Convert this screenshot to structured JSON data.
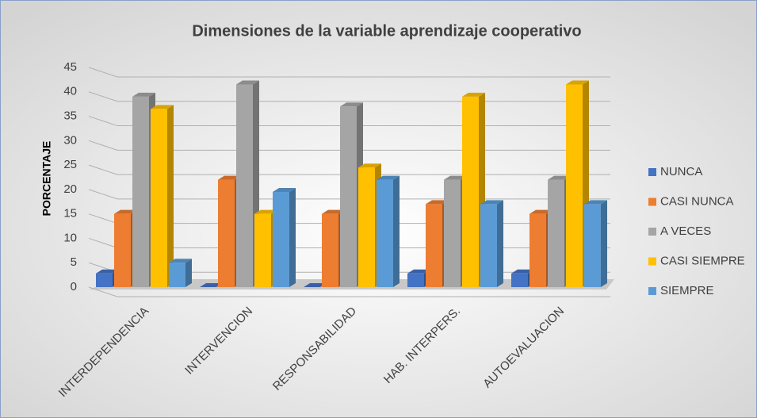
{
  "chart_data": {
    "type": "bar3d",
    "title": "Dimensiones de la variable aprendizaje cooperativo",
    "y_label": "PORCENTAJE",
    "categories": [
      "INTERDEPENDENCIA",
      "INTERVENCION",
      "RESPONSABILIDAD",
      "HAB. INTERPERS.",
      "AUTOEVALUACION"
    ],
    "series": [
      {
        "name": "NUNCA",
        "color": "#4472c4",
        "values": [
          2.8,
          0,
          0,
          2.8,
          2.8
        ]
      },
      {
        "name": "CASI NUNCA",
        "color": "#ed7d31",
        "values": [
          15,
          22,
          15,
          17,
          15
        ]
      },
      {
        "name": "A VECES",
        "color": "#a5a5a5",
        "values": [
          39,
          41.5,
          37,
          22,
          22
        ]
      },
      {
        "name": "CASI SIEMPRE",
        "color": "#ffc000",
        "values": [
          36.5,
          15,
          24.5,
          39,
          41.5
        ]
      },
      {
        "name": "SIEMPRE",
        "color": "#5b9bd5",
        "values": [
          5,
          19.5,
          22,
          17,
          17
        ]
      }
    ],
    "ylim": [
      0,
      45
    ],
    "yticks": [
      0,
      5,
      10,
      15,
      20,
      25,
      30,
      35,
      40,
      45
    ],
    "grid": true,
    "legend": "right"
  }
}
